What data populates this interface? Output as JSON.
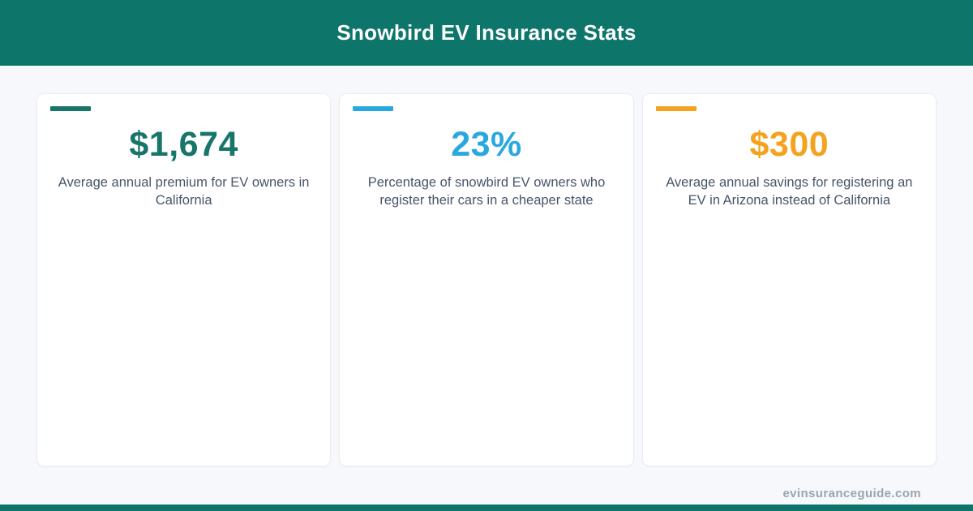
{
  "header": {
    "title": "Snowbird EV Insurance Stats",
    "bg_color": "#0e756a",
    "text_color": "#ffffff"
  },
  "cards": [
    {
      "accent_color": "#17756a",
      "value": "$1,674",
      "description": "Average annual premium for EV owners in California"
    },
    {
      "accent_color": "#29a8e0",
      "value": "23%",
      "description": "Percentage of snowbird EV owners who register their cars in a cheaper state"
    },
    {
      "accent_color": "#f5a21d",
      "value": "$300",
      "description": "Average annual savings for registering an EV in Arizona instead of California"
    }
  ],
  "footer": {
    "website": "evinsuranceguide.com"
  },
  "colors": {
    "page_background": "#f7f8fb",
    "card_background": "#ffffff",
    "card_border": "#e9edf1",
    "description_text": "#475569",
    "footer_text": "#9aa5b1",
    "teal": "#0e756a",
    "blue": "#29a8e0",
    "orange": "#f5a21d"
  },
  "chart_data": {
    "type": "table",
    "title": "Snowbird EV Insurance Stats",
    "stats": [
      {
        "value": "$1,674",
        "numeric": 1674,
        "unit": "USD",
        "label": "Average annual premium for EV owners in California",
        "color": "#17756a"
      },
      {
        "value": "23%",
        "numeric": 23,
        "unit": "percent",
        "label": "Percentage of snowbird EV owners who register their cars in a cheaper state",
        "color": "#29a8e0"
      },
      {
        "value": "$300",
        "numeric": 300,
        "unit": "USD",
        "label": "Average annual savings for registering an EV in Arizona instead of California",
        "color": "#f5a21d"
      }
    ],
    "layout": "three stat cards in a row, header banner top, site credit bottom-right, accent strip bottom"
  }
}
